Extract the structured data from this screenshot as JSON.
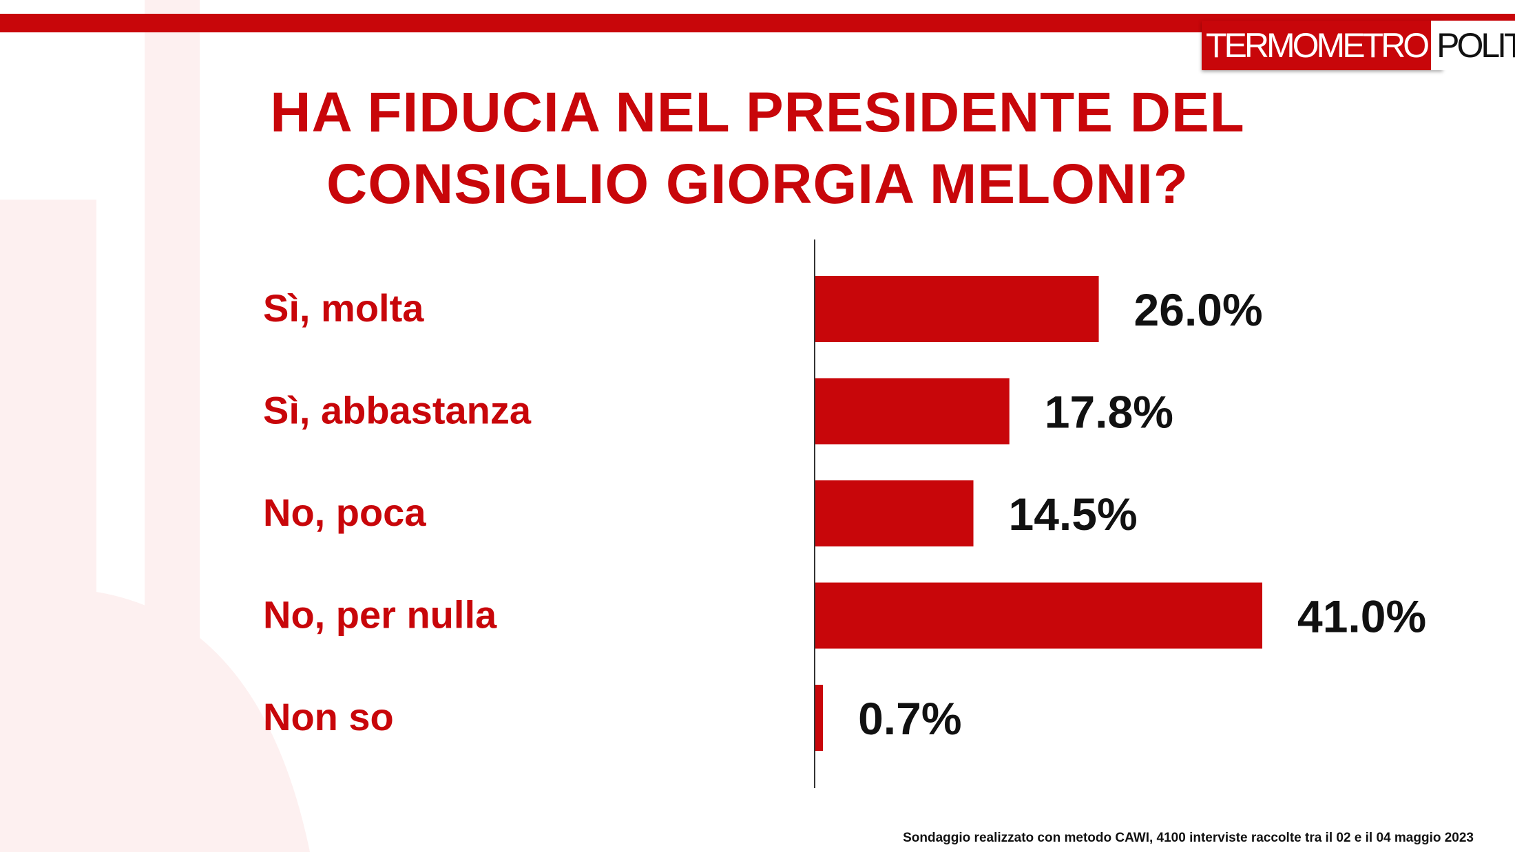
{
  "header": {
    "logo_part1": "TERMOMETRO",
    "logo_part2": "POLITICO"
  },
  "colors": {
    "brand_red": "#c8060a",
    "text_dark": "#111111"
  },
  "chart_data": {
    "type": "bar",
    "orientation": "horizontal",
    "title_line1": "HA FIDUCIA NEL PRESIDENTE DEL",
    "title_line2": "CONSIGLIO GIORGIA MELONI?",
    "categories": [
      "Sì, molta",
      "Sì, abbastanza",
      "No, poca",
      "No, per nulla",
      "Non so"
    ],
    "values": [
      26.0,
      17.8,
      14.5,
      41.0,
      0.7
    ],
    "value_labels": [
      "26.0%",
      "17.8%",
      "14.5%",
      "41.0%",
      "0.7%"
    ],
    "xlim": [
      0,
      41
    ],
    "grid": false,
    "legend": "none"
  },
  "footer": {
    "note": "Sondaggio realizzato con metodo CAWI, 4100 interviste raccolte tra il 02 e il 04 maggio 2023"
  }
}
